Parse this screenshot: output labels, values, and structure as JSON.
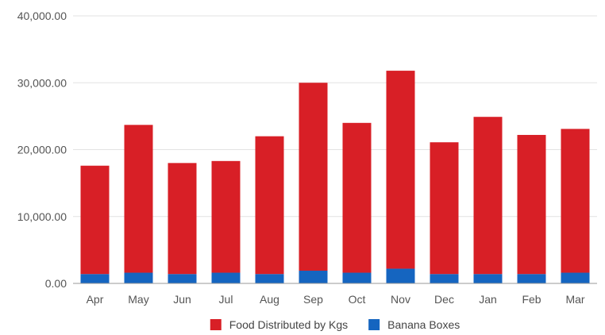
{
  "chart_data": {
    "type": "bar",
    "stacked": true,
    "categories": [
      "Apr",
      "May",
      "Jun",
      "Jul",
      "Aug",
      "Sep",
      "Oct",
      "Nov",
      "Dec",
      "Jan",
      "Feb",
      "Mar"
    ],
    "series": [
      {
        "name": "Banana Boxes",
        "color": "#1565c0",
        "values": [
          1400,
          1600,
          1400,
          1600,
          1400,
          1900,
          1600,
          2200,
          1400,
          1400,
          1400,
          1600
        ]
      },
      {
        "name": "Food Distributed by Kgs",
        "color": "#d81f26",
        "values": [
          16200,
          22100,
          16600,
          16700,
          20600,
          28100,
          22400,
          29600,
          19700,
          23500,
          20800,
          21500
        ]
      }
    ],
    "y_ticks": [
      "0.00",
      "10,000.00",
      "20,000.00",
      "30,000.00",
      "40,000.00"
    ],
    "ylim": [
      0,
      40000
    ],
    "grid": true,
    "legend_position": "bottom",
    "legend_order": [
      "Food Distributed by Kgs",
      "Banana Boxes"
    ]
  }
}
